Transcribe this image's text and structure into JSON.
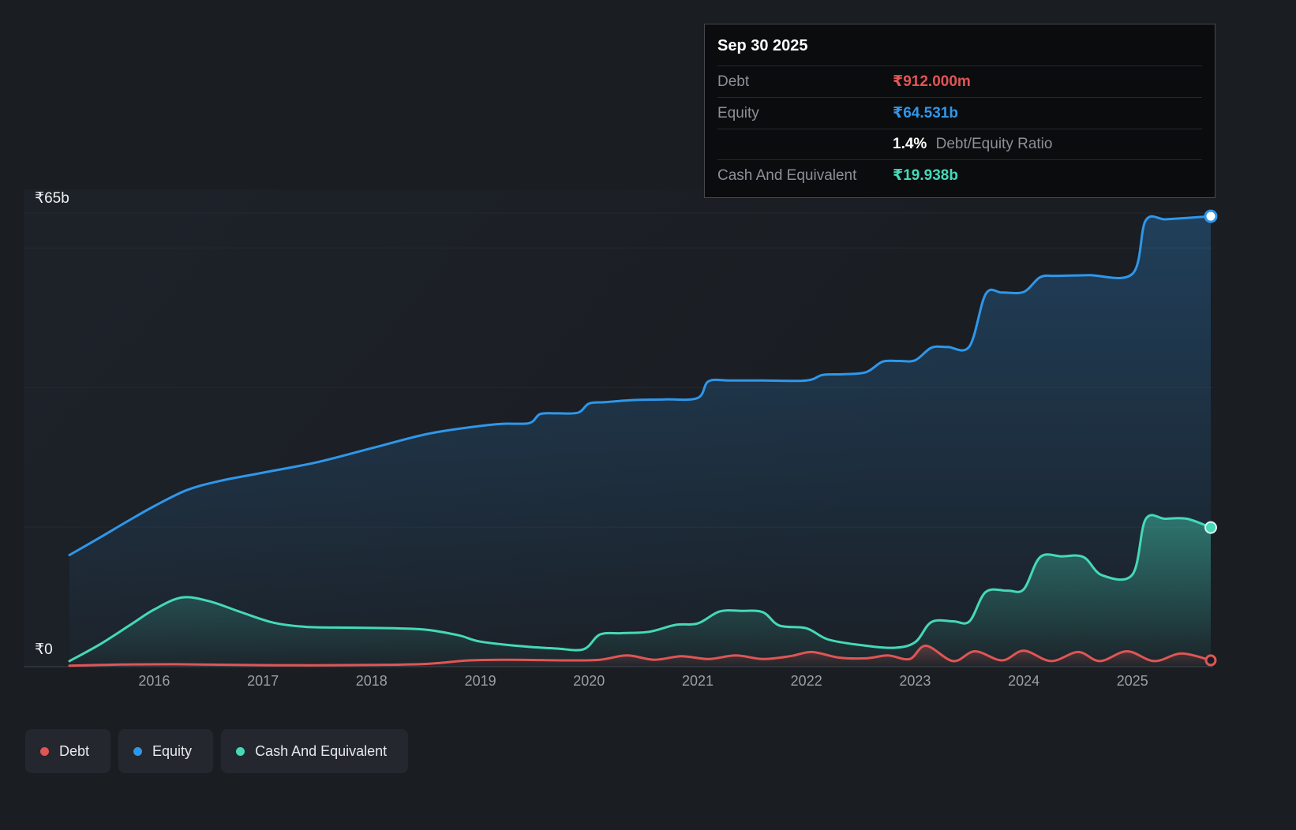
{
  "tooltip": {
    "date": "Sep 30 2025",
    "debt_label": "Debt",
    "debt_value": "₹912.000m",
    "debt_color": "#e05555",
    "equity_label": "Equity",
    "equity_value": "₹64.531b",
    "equity_color": "#2f97ea",
    "ratio_value": "1.4%",
    "ratio_label": "Debt/Equity Ratio",
    "cash_label": "Cash And Equivalent",
    "cash_value": "₹19.938b",
    "cash_color": "#45d9b8"
  },
  "legend": {
    "items": [
      {
        "id": "debt",
        "label": "Debt",
        "color": "#e05555"
      },
      {
        "id": "equity",
        "label": "Equity",
        "color": "#2f97ea"
      },
      {
        "id": "cash",
        "label": "Cash And Equivalent",
        "color": "#45d9b8"
      }
    ]
  },
  "chart_data": {
    "type": "area",
    "y_unit": "INR billions",
    "ylim": [
      0,
      65
    ],
    "xlim": [
      2015.22,
      2025.72
    ],
    "gridline_values": [
      20,
      40,
      60,
      65
    ],
    "y_ticks": [
      {
        "value": 65,
        "label": "₹65b"
      },
      {
        "value": 0,
        "label": "₹0"
      }
    ],
    "x_tick_years": [
      2016,
      2017,
      2018,
      2019,
      2020,
      2021,
      2022,
      2023,
      2024,
      2025
    ],
    "x_ticks": [
      "2016",
      "2017",
      "2018",
      "2019",
      "2020",
      "2021",
      "2022",
      "2023",
      "2024",
      "2025"
    ],
    "legend": [
      "Debt",
      "Equity",
      "Cash And Equivalent"
    ],
    "series": [
      {
        "name": "Equity",
        "color": "#2f97ea",
        "current_value": "₹64.531b",
        "points": [
          [
            2015.22,
            16.0
          ],
          [
            2015.5,
            18.5
          ],
          [
            2015.75,
            20.8
          ],
          [
            2016.0,
            23.0
          ],
          [
            2016.3,
            25.3
          ],
          [
            2016.6,
            26.6
          ],
          [
            2017.0,
            27.8
          ],
          [
            2017.5,
            29.3
          ],
          [
            2018.0,
            31.3
          ],
          [
            2018.5,
            33.3
          ],
          [
            2018.9,
            34.3
          ],
          [
            2019.2,
            34.8
          ],
          [
            2019.45,
            34.9
          ],
          [
            2019.55,
            36.2
          ],
          [
            2019.7,
            36.3
          ],
          [
            2019.9,
            36.4
          ],
          [
            2020.0,
            37.7
          ],
          [
            2020.15,
            37.9
          ],
          [
            2020.4,
            38.2
          ],
          [
            2020.7,
            38.3
          ],
          [
            2021.0,
            38.5
          ],
          [
            2021.1,
            40.9
          ],
          [
            2021.3,
            41.0
          ],
          [
            2021.6,
            41.0
          ],
          [
            2022.0,
            41.0
          ],
          [
            2022.15,
            41.8
          ],
          [
            2022.35,
            41.9
          ],
          [
            2022.55,
            42.2
          ],
          [
            2022.7,
            43.7
          ],
          [
            2022.85,
            43.8
          ],
          [
            2023.0,
            43.9
          ],
          [
            2023.15,
            45.7
          ],
          [
            2023.3,
            45.8
          ],
          [
            2023.5,
            45.9
          ],
          [
            2023.65,
            53.4
          ],
          [
            2023.8,
            53.6
          ],
          [
            2024.0,
            53.7
          ],
          [
            2024.15,
            55.8
          ],
          [
            2024.3,
            56.0
          ],
          [
            2024.6,
            56.1
          ],
          [
            2025.0,
            56.3
          ],
          [
            2025.12,
            63.9
          ],
          [
            2025.3,
            64.1
          ],
          [
            2025.5,
            64.3
          ],
          [
            2025.72,
            64.531
          ]
        ]
      },
      {
        "name": "Cash And Equivalent",
        "color": "#45d9b8",
        "current_value": "₹19.938b",
        "points": [
          [
            2015.22,
            0.8
          ],
          [
            2015.5,
            3.2
          ],
          [
            2015.8,
            6.2
          ],
          [
            2016.0,
            8.2
          ],
          [
            2016.25,
            9.9
          ],
          [
            2016.5,
            9.4
          ],
          [
            2016.8,
            7.8
          ],
          [
            2017.1,
            6.3
          ],
          [
            2017.4,
            5.7
          ],
          [
            2017.8,
            5.6
          ],
          [
            2018.2,
            5.5
          ],
          [
            2018.5,
            5.3
          ],
          [
            2018.8,
            4.5
          ],
          [
            2019.0,
            3.6
          ],
          [
            2019.4,
            2.9
          ],
          [
            2019.7,
            2.6
          ],
          [
            2019.95,
            2.5
          ],
          [
            2020.1,
            4.6
          ],
          [
            2020.3,
            4.8
          ],
          [
            2020.55,
            5.0
          ],
          [
            2020.8,
            6.0
          ],
          [
            2021.0,
            6.2
          ],
          [
            2021.2,
            7.9
          ],
          [
            2021.4,
            8.0
          ],
          [
            2021.6,
            7.8
          ],
          [
            2021.75,
            5.9
          ],
          [
            2022.0,
            5.5
          ],
          [
            2022.2,
            3.9
          ],
          [
            2022.5,
            3.1
          ],
          [
            2022.8,
            2.7
          ],
          [
            2023.0,
            3.5
          ],
          [
            2023.15,
            6.4
          ],
          [
            2023.35,
            6.5
          ],
          [
            2023.5,
            6.5
          ],
          [
            2023.65,
            10.7
          ],
          [
            2023.85,
            10.9
          ],
          [
            2024.0,
            11.1
          ],
          [
            2024.15,
            15.7
          ],
          [
            2024.35,
            15.8
          ],
          [
            2024.55,
            15.7
          ],
          [
            2024.72,
            13.1
          ],
          [
            2025.0,
            13.2
          ],
          [
            2025.12,
            21.1
          ],
          [
            2025.3,
            21.2
          ],
          [
            2025.5,
            21.2
          ],
          [
            2025.72,
            19.938
          ]
        ]
      },
      {
        "name": "Debt",
        "color": "#e05555",
        "current_value": "₹912.000m",
        "points": [
          [
            2015.22,
            0.15
          ],
          [
            2015.7,
            0.3
          ],
          [
            2016.2,
            0.35
          ],
          [
            2016.8,
            0.25
          ],
          [
            2017.4,
            0.2
          ],
          [
            2018.0,
            0.25
          ],
          [
            2018.5,
            0.4
          ],
          [
            2018.9,
            0.9
          ],
          [
            2019.3,
            1.0
          ],
          [
            2019.8,
            0.9
          ],
          [
            2020.1,
            1.0
          ],
          [
            2020.35,
            1.6
          ],
          [
            2020.6,
            1.0
          ],
          [
            2020.85,
            1.5
          ],
          [
            2021.1,
            1.1
          ],
          [
            2021.35,
            1.6
          ],
          [
            2021.6,
            1.1
          ],
          [
            2021.85,
            1.5
          ],
          [
            2022.05,
            2.1
          ],
          [
            2022.3,
            1.3
          ],
          [
            2022.55,
            1.2
          ],
          [
            2022.75,
            1.6
          ],
          [
            2022.95,
            1.1
          ],
          [
            2023.1,
            3.0
          ],
          [
            2023.35,
            0.8
          ],
          [
            2023.55,
            2.2
          ],
          [
            2023.8,
            0.9
          ],
          [
            2024.0,
            2.3
          ],
          [
            2024.25,
            0.8
          ],
          [
            2024.5,
            2.1
          ],
          [
            2024.7,
            0.8
          ],
          [
            2024.95,
            2.2
          ],
          [
            2025.2,
            0.8
          ],
          [
            2025.45,
            1.9
          ],
          [
            2025.72,
            0.912
          ]
        ]
      }
    ]
  }
}
